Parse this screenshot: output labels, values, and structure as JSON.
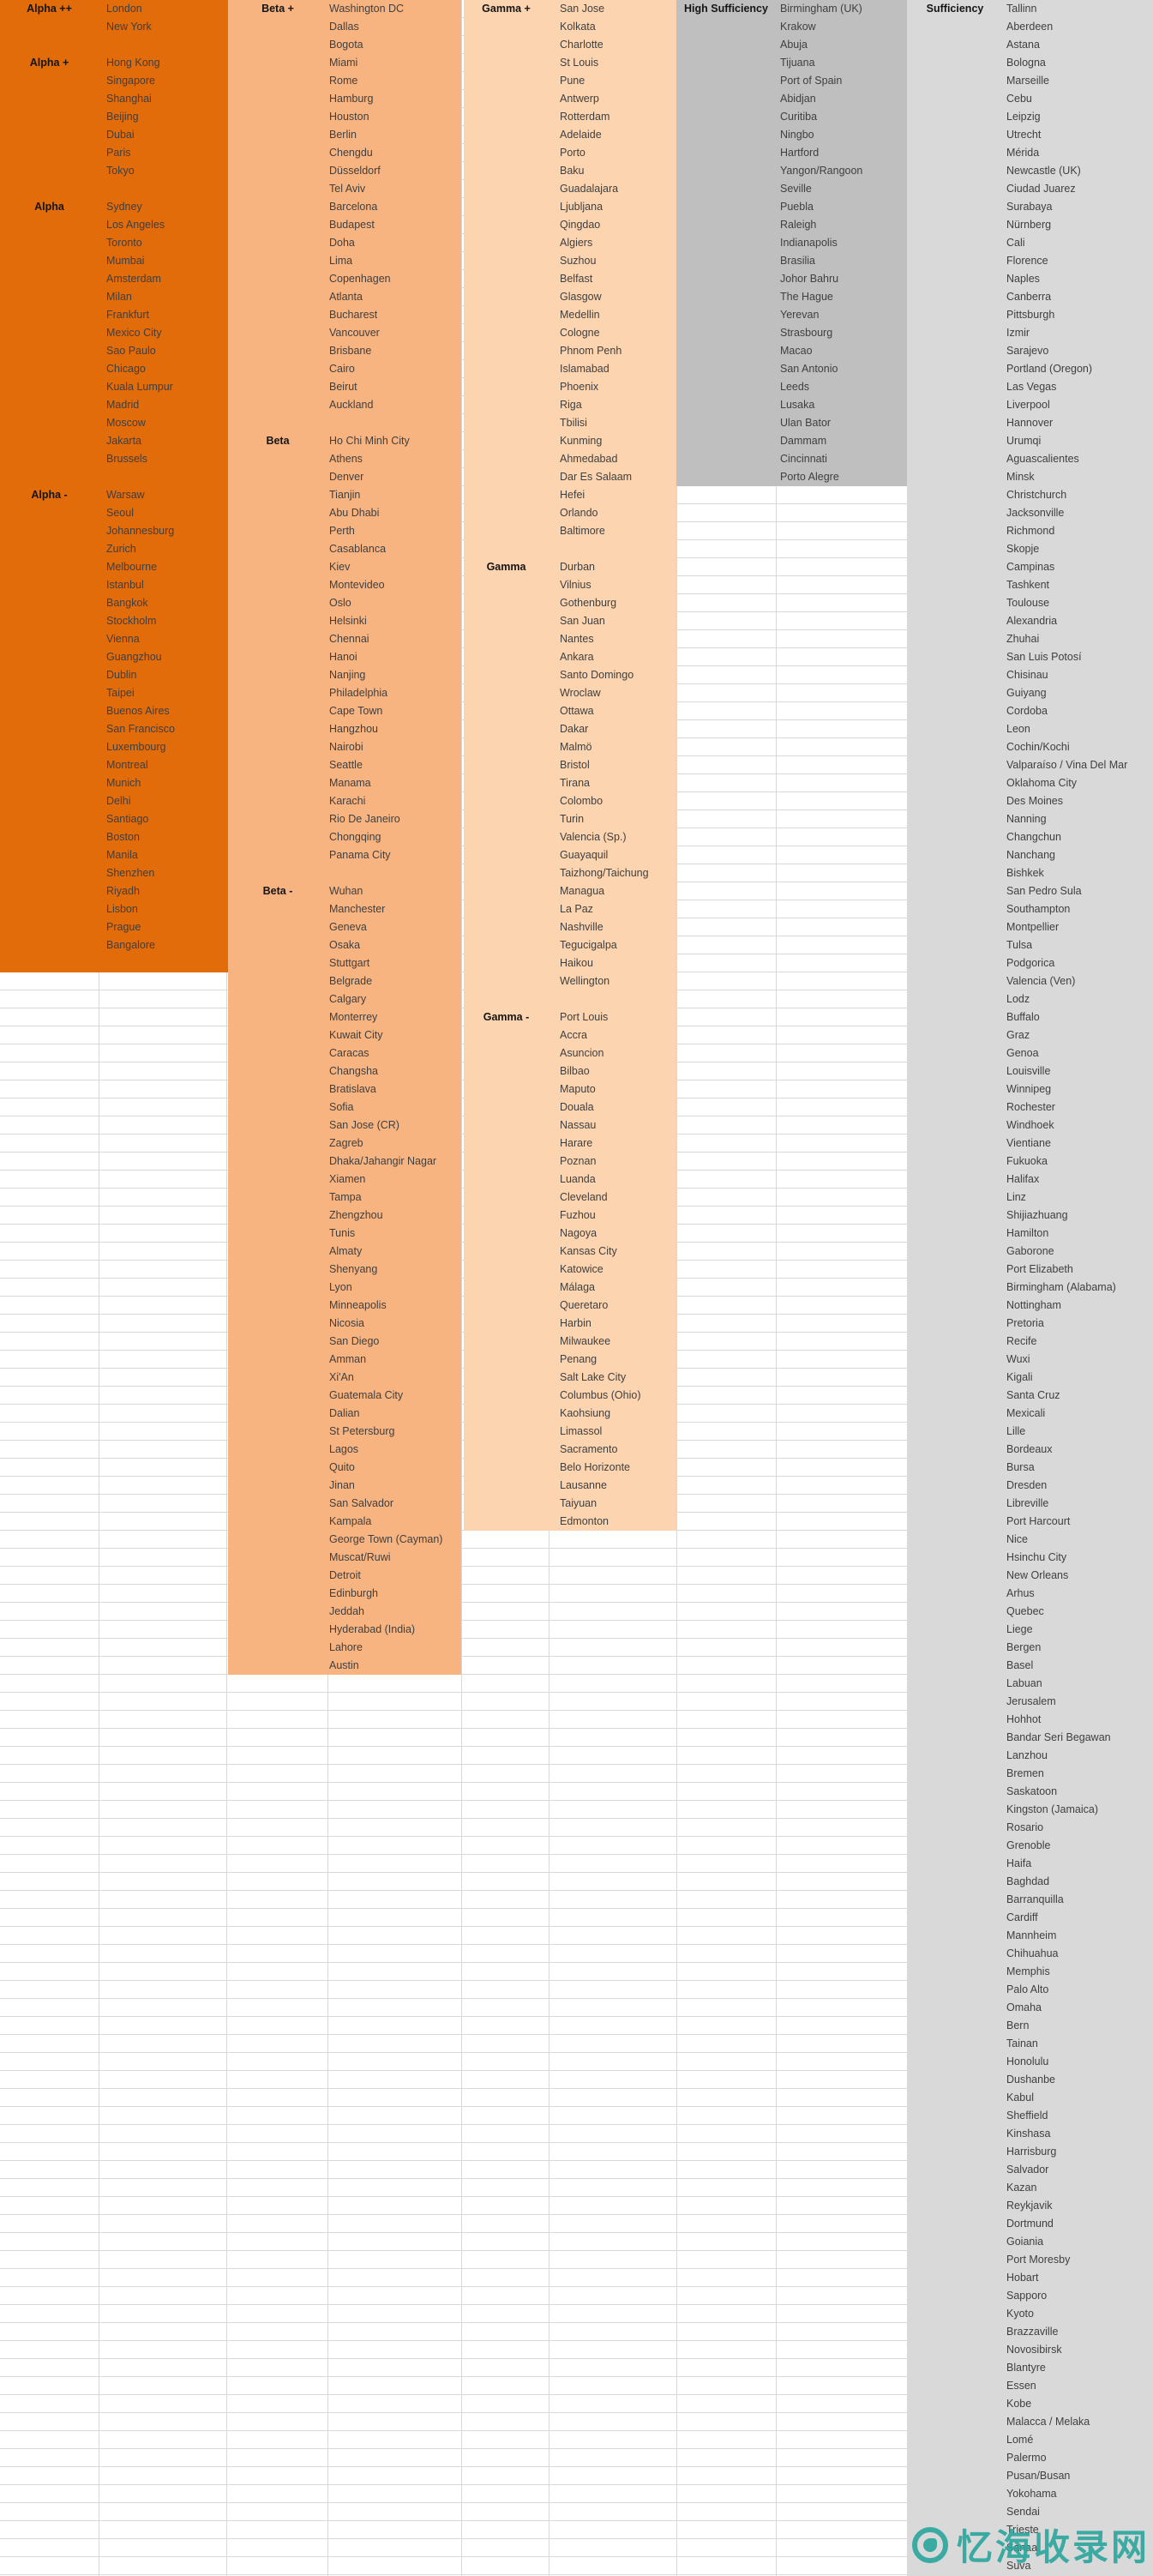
{
  "colors": {
    "alpha_block": "#E26B0A",
    "beta_block": "#F8B480",
    "gamma_block": "#FCD5B0",
    "high_sufficiency_block": "#BFBFBF",
    "sufficiency_block": "#D9D9D9",
    "grid_line": "#D8D8D8",
    "city_text": "#3F3F3F",
    "label_text": "#151515",
    "watermark": "#2BA69D"
  },
  "watermark": {
    "text": "忆海收录网"
  },
  "groups": [
    {
      "id": "alpha",
      "sections": [
        {
          "label": "Alpha ++",
          "cities": [
            "London",
            "New York"
          ]
        },
        {
          "label": "Alpha +",
          "cities": [
            "Hong Kong",
            "Singapore",
            "Shanghai",
            "Beijing",
            "Dubai",
            "Paris",
            "Tokyo"
          ]
        },
        {
          "label": "Alpha",
          "cities": [
            "Sydney",
            "Los Angeles",
            "Toronto",
            "Mumbai",
            "Amsterdam",
            "Milan",
            "Frankfurt",
            "Mexico City",
            "Sao Paulo",
            "Chicago",
            "Kuala Lumpur",
            "Madrid",
            "Moscow",
            "Jakarta",
            "Brussels"
          ]
        },
        {
          "label": "Alpha -",
          "cities": [
            "Warsaw",
            "Seoul",
            "Johannesburg",
            "Zurich",
            "Melbourne",
            "Istanbul",
            "Bangkok",
            "Stockholm",
            "Vienna",
            "Guangzhou",
            "Dublin",
            "Taipei",
            "Buenos Aires",
            "San Francisco",
            "Luxembourg",
            "Montreal",
            "Munich",
            "Delhi",
            "Santiago",
            "Boston",
            "Manila",
            "Shenzhen",
            "Riyadh",
            "Lisbon",
            "Prague",
            "Bangalore"
          ]
        }
      ]
    },
    {
      "id": "beta",
      "sections": [
        {
          "label": "Beta +",
          "cities": [
            "Washington DC",
            "Dallas",
            "Bogota",
            "Miami",
            "Rome",
            "Hamburg",
            "Houston",
            "Berlin",
            "Chengdu",
            "Düsseldorf",
            "Tel Aviv",
            "Barcelona",
            "Budapest",
            "Doha",
            "Lima",
            "Copenhagen",
            "Atlanta",
            "Bucharest",
            "Vancouver",
            "Brisbane",
            "Cairo",
            "Beirut",
            "Auckland"
          ]
        },
        {
          "label": "Beta",
          "cities": [
            "Ho Chi Minh City",
            "Athens",
            "Denver",
            "Tianjin",
            "Abu Dhabi",
            "Perth",
            "Casablanca",
            "Kiev",
            "Montevideo",
            "Oslo",
            "Helsinki",
            "Chennai",
            "Hanoi",
            "Nanjing",
            "Philadelphia",
            "Cape Town",
            "Hangzhou",
            "Nairobi",
            "Seattle",
            "Manama",
            "Karachi",
            "Rio De Janeiro",
            "Chongqing",
            "Panama City"
          ]
        },
        {
          "label": "Beta -",
          "cities": [
            "Wuhan",
            "Manchester",
            "Geneva",
            "Osaka",
            "Stuttgart",
            "Belgrade",
            "Calgary",
            "Monterrey",
            "Kuwait City",
            "Caracas",
            "Changsha",
            "Bratislava",
            "Sofia",
            "San Jose (CR)",
            "Zagreb",
            "Dhaka/Jahangir Nagar",
            "Xiamen",
            "Tampa",
            "Zhengzhou",
            "Tunis",
            "Almaty",
            "Shenyang",
            "Lyon",
            "Minneapolis",
            "Nicosia",
            "San Diego",
            "Amman",
            "Xi'An",
            "Guatemala City",
            "Dalian",
            "St Petersburg",
            "Lagos",
            "Quito",
            "Jinan",
            "San Salvador",
            "Kampala",
            "George Town (Cayman)",
            "Muscat/Ruwi",
            "Detroit",
            "Edinburgh",
            "Jeddah",
            "Hyderabad (India)",
            "Lahore",
            "Austin"
          ]
        }
      ]
    },
    {
      "id": "gamma",
      "sections": [
        {
          "label": "Gamma +",
          "cities": [
            "San Jose",
            "Kolkata",
            "Charlotte",
            "St Louis",
            "Pune",
            "Antwerp",
            "Rotterdam",
            "Adelaide",
            "Porto",
            "Baku",
            "Guadalajara",
            "Ljubljana",
            "Qingdao",
            "Algiers",
            "Suzhou",
            "Belfast",
            "Glasgow",
            "Medellin",
            "Cologne",
            "Phnom Penh",
            "Islamabad",
            "Phoenix",
            "Riga",
            "Tbilisi",
            "Kunming",
            "Ahmedabad",
            "Dar Es Salaam",
            "Hefei",
            "Orlando",
            "Baltimore"
          ]
        },
        {
          "label": "Gamma",
          "cities": [
            "Durban",
            "Vilnius",
            "Gothenburg",
            "San Juan",
            "Nantes",
            "Ankara",
            "Santo Domingo",
            "Wroclaw",
            "Ottawa",
            "Dakar",
            "Malmö",
            "Bristol",
            "Tirana",
            "Colombo",
            "Turin",
            "Valencia (Sp.)",
            "Guayaquil",
            "Taizhong/Taichung",
            "Managua",
            "La Paz",
            "Nashville",
            "Tegucigalpa",
            "Haikou",
            "Wellington"
          ]
        },
        {
          "label": "Gamma -",
          "cities": [
            "Port Louis",
            "Accra",
            "Asuncion",
            "Bilbao",
            "Maputo",
            "Douala",
            "Nassau",
            "Harare",
            "Poznan",
            "Luanda",
            "Cleveland",
            "Fuzhou",
            "Nagoya",
            "Kansas City",
            "Katowice",
            "Málaga",
            "Queretaro",
            "Harbin",
            "Milwaukee",
            "Penang",
            "Salt Lake City",
            "Columbus (Ohio)",
            "Kaohsiung",
            "Limassol",
            "Sacramento",
            "Belo Horizonte",
            "Lausanne",
            "Taiyuan",
            "Edmonton"
          ]
        }
      ]
    },
    {
      "id": "high-sufficiency",
      "sections": [
        {
          "label": "High Sufficiency",
          "cities": [
            "Birmingham (UK)",
            "Krakow",
            "Abuja",
            "Tijuana",
            "Port of Spain",
            "Abidjan",
            "Curitiba",
            "Ningbo",
            "Hartford",
            "Yangon/Rangoon",
            "Seville",
            "Puebla",
            "Raleigh",
            "Indianapolis",
            "Brasilia",
            "Johor Bahru",
            "The Hague",
            "Yerevan",
            "Strasbourg",
            "Macao",
            "San Antonio",
            "Leeds",
            "Lusaka",
            "Ulan Bator",
            "Dammam",
            "Cincinnati",
            "Porto Alegre"
          ]
        }
      ]
    },
    {
      "id": "sufficiency",
      "sections": [
        {
          "label": "Sufficiency",
          "cities": [
            "Tallinn",
            "Aberdeen",
            "Astana",
            "Bologna",
            "Marseille",
            "Cebu",
            "Leipzig",
            "Utrecht",
            "Mérida",
            "Newcastle (UK)",
            "Ciudad Juarez",
            "Surabaya",
            "Nürnberg",
            "Cali",
            "Florence",
            "Naples",
            "Canberra",
            "Pittsburgh",
            "Izmir",
            "Sarajevo",
            "Portland (Oregon)",
            "Las Vegas",
            "Liverpool",
            "Hannover",
            "Urumqi",
            "Aguascalientes",
            "Minsk",
            "Christchurch",
            "Jacksonville",
            "Richmond",
            "Skopje",
            "Campinas",
            "Tashkent",
            "Toulouse",
            "Alexandria",
            "Zhuhai",
            "San Luis Potosí",
            "Chisinau",
            "Guiyang",
            "Cordoba",
            "Leon",
            "Cochin/Kochi",
            "Valparaíso / Vina Del Mar",
            "Oklahoma City",
            "Des Moines",
            "Nanning",
            "Changchun",
            "Nanchang",
            "Bishkek",
            "San Pedro Sula",
            "Southampton",
            "Montpellier",
            "Tulsa",
            "Podgorica",
            "Valencia (Ven)",
            "Lodz",
            "Buffalo",
            "Graz",
            "Genoa",
            "Louisville",
            "Winnipeg",
            "Rochester",
            "Windhoek",
            "Vientiane",
            "Fukuoka",
            "Halifax",
            "Linz",
            "Shijiazhuang",
            "Hamilton",
            "Gaborone",
            "Port Elizabeth",
            "Birmingham (Alabama)",
            "Nottingham",
            "Pretoria",
            "Recife",
            "Wuxi",
            "Kigali",
            "Santa Cruz",
            "Mexicali",
            "Lille",
            "Bordeaux",
            "Bursa",
            "Dresden",
            "Libreville",
            "Port Harcourt",
            "Nice",
            "Hsinchu City",
            "New Orleans",
            "Arhus",
            "Quebec",
            "Liege",
            "Bergen",
            "Basel",
            "Labuan",
            "Jerusalem",
            "Hohhot",
            "Bandar Seri Begawan",
            "Lanzhou",
            "Bremen",
            "Saskatoon",
            "Kingston (Jamaica)",
            "Rosario",
            "Grenoble",
            "Haifa",
            "Baghdad",
            "Barranquilla",
            "Cardiff",
            "Mannheim",
            "Chihuahua",
            "Memphis",
            "Palo Alto",
            "Omaha",
            "Bern",
            "Tainan",
            "Honolulu",
            "Dushanbe",
            "Kabul",
            "Sheffield",
            "Kinshasa",
            "Harrisburg",
            "Salvador",
            "Kazan",
            "Reykjavik",
            "Dortmund",
            "Goiania",
            "Port Moresby",
            "Hobart",
            "Sapporo",
            "Kyoto",
            "Brazzaville",
            "Novosibirsk",
            "Blantyre",
            "Essen",
            "Kobe",
            "Malacca / Melaka",
            "Lomé",
            "Palermo",
            "Pusan/Busan",
            "Yokohama",
            "Sendai",
            "Trieste",
            "Sanaa",
            "Suva"
          ]
        }
      ]
    }
  ]
}
